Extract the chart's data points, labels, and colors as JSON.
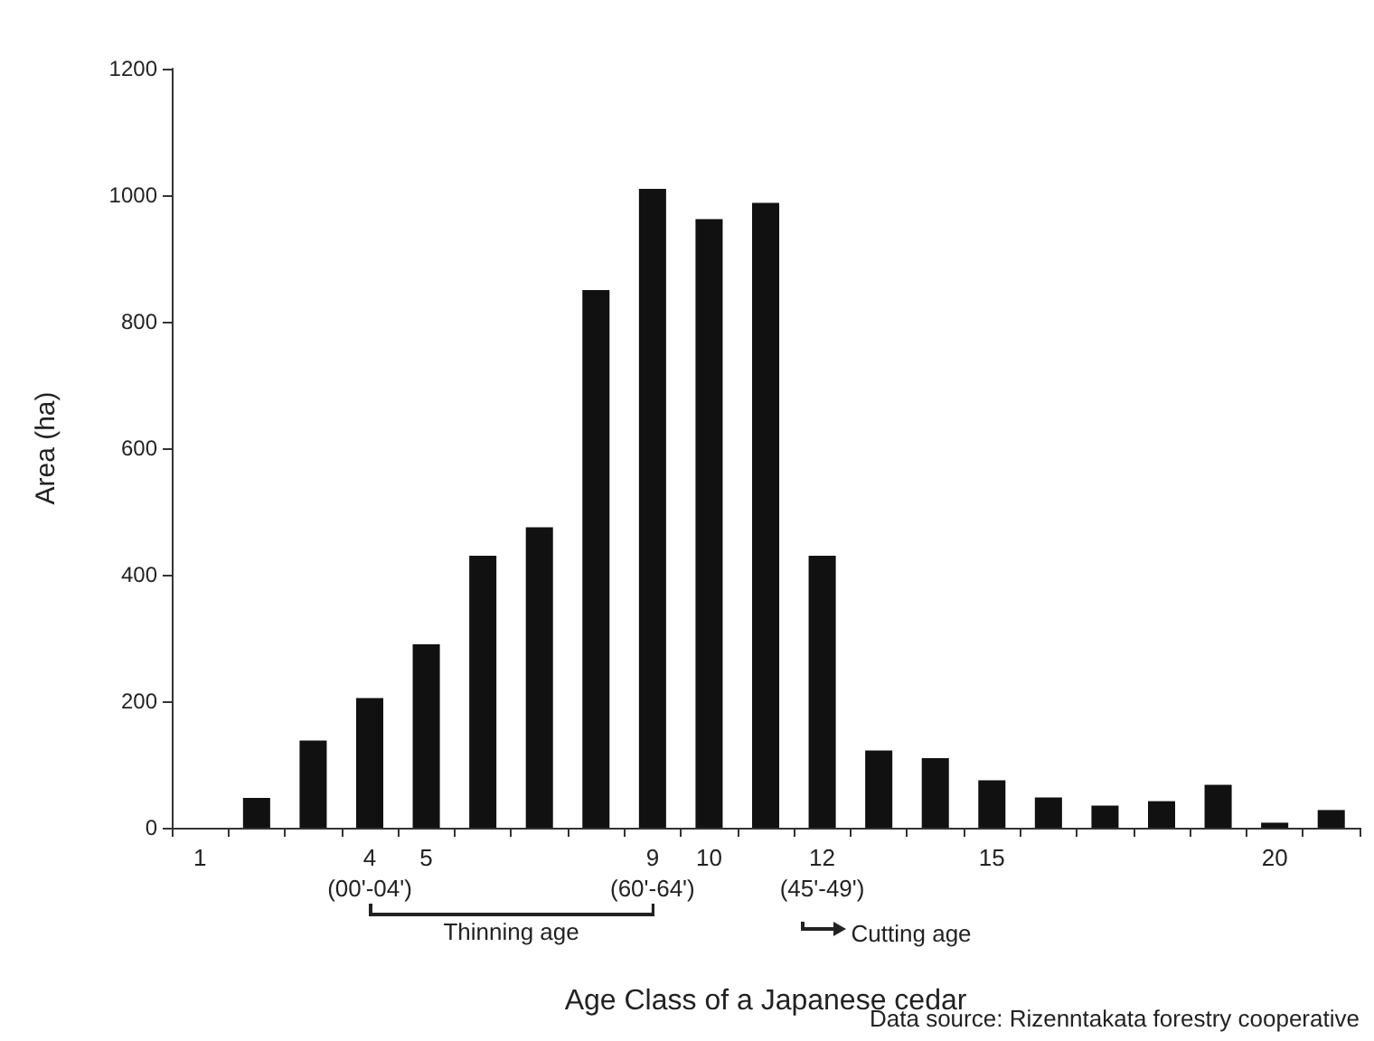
{
  "chart_data": {
    "type": "bar",
    "xlabel": "Age Class of a Japanese cedar",
    "ylabel": "Area (ha)",
    "categories": [
      "1",
      null,
      null,
      "4\n(00'-04')",
      "5",
      null,
      null,
      null,
      "9\n(60'-64')",
      "10",
      null,
      "12\n(45'-49')",
      null,
      null,
      "15",
      null,
      null,
      null,
      null,
      "20",
      null
    ],
    "values": [
      0,
      47,
      138,
      205,
      290,
      430,
      475,
      850,
      1010,
      962,
      988,
      430,
      122,
      110,
      75,
      48,
      35,
      42,
      68,
      8,
      28
    ],
    "color": "#111111",
    "ylim": [
      0,
      1200
    ],
    "yticks": [
      0,
      200,
      400,
      600,
      800,
      1000,
      1200
    ],
    "grid": false,
    "annotations": [
      "Thinning age",
      "Cutting age",
      "Data source: Rizenntakata forestry cooperative"
    ]
  }
}
